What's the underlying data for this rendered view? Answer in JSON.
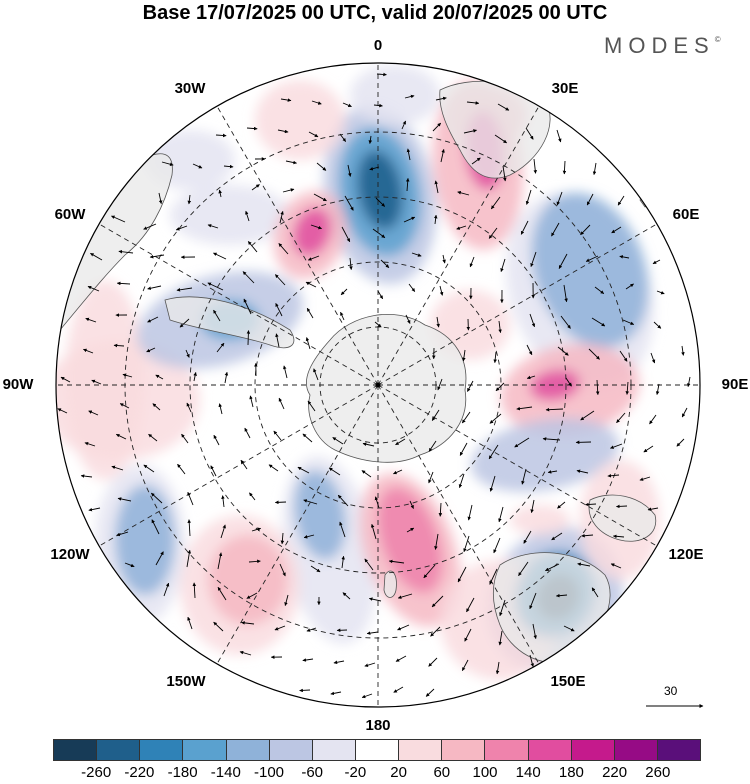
{
  "title": "Base 17/07/2025 00 UTC, valid 20/07/2025 00 UTC",
  "brand": {
    "name": "MODES",
    "mark": "©"
  },
  "map": {
    "projection": "south polar stereographic",
    "meridian_labels": [
      "0",
      "30E",
      "60E",
      "90E",
      "120E",
      "150E",
      "180",
      "150W",
      "120W",
      "90W",
      "60W",
      "30W"
    ],
    "land_color": "#e9e9e9",
    "grid_style": "dashed"
  },
  "vector_scale": {
    "label": "30"
  },
  "legend": {
    "colors": [
      "#173b57",
      "#1f5f8b",
      "#2f82b7",
      "#5aa1cf",
      "#8fb2d9",
      "#bcc6e3",
      "#e4e4f1",
      "#ffffff",
      "#f9dcdf",
      "#f6b8c3",
      "#ef83ac",
      "#e14d9f",
      "#c51a8c",
      "#960b85",
      "#5a0f7a"
    ],
    "tick_labels": [
      "-260",
      "-220",
      "-180",
      "-140",
      "-100",
      "-60",
      "-20",
      "20",
      "60",
      "100",
      "140",
      "180",
      "220",
      "260"
    ]
  }
}
